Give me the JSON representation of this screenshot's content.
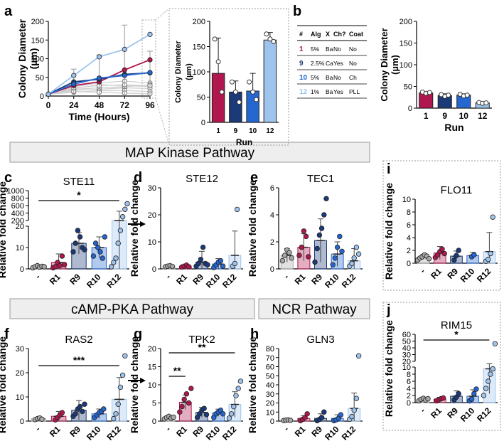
{
  "panel_letters": {
    "a": "a",
    "b": "b",
    "c": "c",
    "d": "d",
    "e": "e",
    "f": "f",
    "g": "g",
    "h": "h",
    "i": "i",
    "j": "j"
  },
  "pathways": {
    "map": "MAP Kinase Pathway",
    "camp": "cAMP-PKA Pathway",
    "ncr": "NCR Pathway"
  },
  "colors": {
    "r1": "#b0174f",
    "r9": "#1a3a78",
    "r10": "#2467d1",
    "r12": "#9ec4ee",
    "ctrl": "#a8a8a8",
    "grey": "#bbbbbb"
  },
  "table": {
    "headers": [
      "#",
      "Alg",
      "X",
      "Ch?",
      "Coat"
    ],
    "rows": [
      {
        "num": "1",
        "alg": "5%",
        "x": "Ba",
        "ch": "No",
        "coat": "No"
      },
      {
        "num": "9",
        "alg": "2.5%",
        "x": "Ca",
        "ch": "Yes",
        "coat": "No"
      },
      {
        "num": "10",
        "alg": "5%",
        "x": "Ba",
        "ch": "No",
        "coat": "Ch"
      },
      {
        "num": "12",
        "alg": "1%",
        "x": "Ba",
        "ch": "Yes",
        "coat": "PLL"
      }
    ]
  },
  "chart_data": [
    {
      "id": "a_line",
      "type": "line",
      "xlabel": "Time (Hours)",
      "ylabel": "Colony Diameter (µm)",
      "x": [
        0,
        24,
        48,
        72,
        96
      ],
      "xticks": [
        "0",
        "24",
        "48",
        "72",
        "96"
      ],
      "ylim": [
        0,
        200
      ],
      "yticks": [
        "0",
        "50",
        "100",
        "150",
        "200"
      ],
      "series": [
        {
          "name": "1",
          "values": [
            5,
            28,
            38,
            70,
            97
          ]
        },
        {
          "name": "9",
          "values": [
            5,
            38,
            45,
            58,
            62
          ]
        },
        {
          "name": "10",
          "values": [
            5,
            32,
            48,
            55,
            63
          ]
        },
        {
          "name": "12",
          "values": [
            5,
            55,
            105,
            125,
            165
          ]
        }
      ]
    },
    {
      "id": "a_inset",
      "type": "bar",
      "xlabel": "Run",
      "ylabel": "Colony Diameter (µm)",
      "categories": [
        "1",
        "9",
        "10",
        "12"
      ],
      "values": [
        97,
        60,
        62,
        163
      ],
      "errors": [
        70,
        22,
        35,
        15
      ],
      "ylim": [
        0,
        200
      ],
      "yticks": [
        "0",
        "50",
        "100",
        "150",
        "200"
      ]
    },
    {
      "id": "b_bar",
      "type": "bar",
      "xlabel": "Run",
      "ylabel": "Colony Diameter (µm)",
      "categories": [
        "1",
        "9",
        "10",
        "12"
      ],
      "values": [
        35,
        29,
        30,
        12
      ],
      "errors": [
        3,
        4,
        3,
        2
      ],
      "ylim": [
        0,
        200
      ],
      "yticks": [
        "0",
        "50",
        "100",
        "150",
        "200"
      ]
    },
    {
      "id": "c",
      "type": "bar",
      "title": "STE11",
      "ylabel": "Relative fold change",
      "categories": [
        "-",
        "R1",
        "R9",
        "R10",
        "R12"
      ],
      "values": [
        1,
        3,
        12,
        10,
        200
      ],
      "errors": [
        0.5,
        4,
        5,
        5,
        250
      ],
      "annotation": "*",
      "yticks_upper": [
        "200",
        "400",
        "600",
        "800",
        "1000"
      ],
      "yticks_lower": [
        "0",
        "10",
        "20"
      ]
    },
    {
      "id": "d",
      "type": "bar",
      "title": "STE12",
      "ylabel": "Relative fold change",
      "categories": [
        "-",
        "R1",
        "R9",
        "R10",
        "R12"
      ],
      "values": [
        1,
        1,
        2.5,
        1.8,
        5
      ],
      "errors": [
        0.3,
        0.5,
        4,
        2,
        9
      ],
      "ylim": [
        0,
        30
      ],
      "yticks": [
        "0",
        "10",
        "20",
        "30"
      ]
    },
    {
      "id": "e",
      "type": "bar",
      "title": "TEC1",
      "ylabel": "Relative fold change",
      "categories": [
        "-",
        "R1",
        "R9",
        "R10",
        "R12"
      ],
      "values": [
        1,
        1.6,
        2.1,
        1.1,
        0.6
      ],
      "errors": [
        0.5,
        1,
        1.6,
        0.9,
        0.9
      ],
      "ylim": [
        0,
        6
      ],
      "yticks": [
        "0",
        "2",
        "4",
        "6"
      ]
    },
    {
      "id": "f",
      "type": "bar",
      "title": "RAS2",
      "ylabel": "Relative fold change",
      "categories": [
        "-",
        "R1",
        "R9",
        "R10",
        "R12"
      ],
      "values": [
        1,
        2,
        4.5,
        3,
        9
      ],
      "errors": [
        0.3,
        2,
        4,
        2,
        9
      ],
      "annotation": "***",
      "ylim": [
        0,
        30
      ],
      "yticks": [
        "0",
        "10",
        "20",
        "30"
      ]
    },
    {
      "id": "g",
      "type": "bar",
      "title": "TPK2",
      "ylabel": "Relative fold change",
      "categories": [
        "-",
        "R1",
        "R9",
        "R10",
        "R12"
      ],
      "values": [
        1,
        5.2,
        2.4,
        2.3,
        4.6
      ],
      "errors": [
        0.5,
        2,
        1.4,
        1,
        3.5
      ],
      "annotations": [
        "**",
        "**"
      ],
      "ylim": [
        0,
        20
      ],
      "yticks": [
        "0",
        "5",
        "10",
        "15",
        "20"
      ]
    },
    {
      "id": "h",
      "type": "bar",
      "title": "GLN3",
      "ylabel": "Relative fold change",
      "categories": [
        "-",
        "R1",
        "R9",
        "R10",
        "R12"
      ],
      "values": [
        1,
        3,
        3,
        3,
        14
      ],
      "errors": [
        0.5,
        3,
        5,
        4,
        17
      ],
      "ylim": [
        0,
        80
      ],
      "yticks": [
        "0",
        "10",
        "20",
        "30",
        "40",
        "50",
        "60",
        "70",
        "80"
      ]
    },
    {
      "id": "i",
      "type": "bar",
      "title": "FLO11",
      "ylabel": "Relative fold change",
      "categories": [
        "-",
        "R1",
        "R9",
        "R10",
        "R12"
      ],
      "values": [
        1,
        1.6,
        1.1,
        1.2,
        1.8
      ],
      "errors": [
        0.4,
        1,
        0.8,
        0.5,
        3
      ],
      "ylim": [
        0,
        10
      ],
      "yticks": [
        "0",
        "2",
        "4",
        "6",
        "8",
        "10"
      ]
    },
    {
      "id": "j",
      "type": "bar",
      "title": "RIM15",
      "ylabel": "Relative fold change",
      "categories": [
        "-",
        "R1",
        "R9",
        "R10",
        "R12"
      ],
      "values": [
        1,
        1,
        1.8,
        1.8,
        9.5
      ],
      "errors": [
        0.4,
        0.5,
        1.5,
        1.8,
        7
      ],
      "annotation": "*",
      "yticks_upper": [
        "20",
        "30",
        "40",
        "50",
        "60"
      ],
      "yticks_lower": [
        "0",
        "2",
        "4",
        "6",
        "8",
        "10"
      ]
    }
  ]
}
